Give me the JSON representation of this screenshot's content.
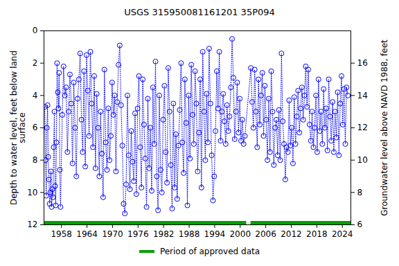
{
  "chart_data": {
    "type": "scatter",
    "title": "USGS 315950081161201 35P094",
    "y_label": "Depth to water level, feet below land\nsurface",
    "y2_label": "Groundwater level above NAVD 1988, feet",
    "marker": "circle",
    "line_style": "dotted",
    "color": "#0000ff",
    "xlim": [
      1953.9,
      2026
    ],
    "xticks": [
      1958,
      1964,
      1970,
      1976,
      1982,
      1988,
      1994,
      2000,
      2006,
      2012,
      2018,
      2024
    ],
    "ylim": [
      0,
      12
    ],
    "yticks": [
      0,
      2,
      4,
      6,
      8,
      10,
      12
    ],
    "y2lim": [
      18,
      6
    ],
    "y2ticks": [
      6,
      8,
      10,
      12,
      14,
      16
    ],
    "approved_periods": {
      "name": "Period of approved data",
      "color": "#00a000",
      "ranges": [
        [
          1953.9,
          2001.5
        ],
        [
          2002.5,
          2026
        ]
      ]
    },
    "x": [
      1954.1,
      1954.26,
      1954.42,
      1954.58,
      1954.74,
      1954.9,
      1955.06,
      1955.22,
      1955.38,
      1955.54,
      1955.7,
      1955.86,
      1956.02,
      1956.18,
      1956.34,
      1956.5,
      1956.66,
      1956.82,
      1956.98,
      1957.14,
      1957.3,
      1957.46,
      1957.62,
      1957.78,
      1958.2,
      1958.5,
      1958.8,
      1959.1,
      1959.4,
      1959.7,
      1960.0,
      1960.3,
      1960.6,
      1960.9,
      1961.2,
      1961.5,
      1961.8,
      1962.1,
      1962.4,
      1962.7,
      1963.0,
      1963.3,
      1963.6,
      1963.9,
      1964.2,
      1964.5,
      1964.8,
      1965.1,
      1965.4,
      1965.7,
      1966.0,
      1966.3,
      1966.6,
      1966.9,
      1967.2,
      1967.5,
      1967.8,
      1968.1,
      1968.4,
      1968.7,
      1969.0,
      1969.3,
      1969.6,
      1969.9,
      1970.2,
      1970.5,
      1970.8,
      1971.1,
      1971.4,
      1971.7,
      1972.0,
      1972.3,
      1972.6,
      1972.9,
      1973.2,
      1973.5,
      1973.8,
      1974.1,
      1974.4,
      1974.7,
      1975.0,
      1975.3,
      1975.6,
      1975.9,
      1976.2,
      1976.5,
      1976.8,
      1977.1,
      1977.4,
      1977.7,
      1978.0,
      1978.3,
      1978.6,
      1978.9,
      1979.2,
      1979.5,
      1979.8,
      1980.1,
      1980.4,
      1980.7,
      1981.0,
      1981.3,
      1981.6,
      1981.9,
      1982.2,
      1982.5,
      1982.8,
      1983.1,
      1983.4,
      1983.7,
      1984.0,
      1984.3,
      1984.6,
      1984.9,
      1985.2,
      1985.5,
      1985.8,
      1986.1,
      1986.4,
      1986.7,
      1987.0,
      1987.3,
      1987.6,
      1987.9,
      1988.2,
      1988.5,
      1988.8,
      1989.1,
      1989.4,
      1989.7,
      1990.0,
      1990.3,
      1990.6,
      1990.9,
      1991.2,
      1991.5,
      1991.8,
      1992.1,
      1992.4,
      1992.7,
      1993.0,
      1993.3,
      1993.6,
      1993.9,
      1994.2,
      1994.5,
      1994.8,
      1995.1,
      1995.4,
      1995.7,
      1996.0,
      1996.3,
      1996.6,
      1996.9,
      1997.2,
      1997.5,
      1997.8,
      1998.1,
      1998.4,
      1998.7,
      1999.0,
      1999.3,
      1999.6,
      1999.9,
      2000.2,
      2000.5,
      2000.8,
      2001.1,
      2002.5,
      2002.8,
      2003.1,
      2003.4,
      2003.7,
      2004.0,
      2004.3,
      2004.6,
      2004.9,
      2005.2,
      2005.5,
      2005.8,
      2006.1,
      2006.4,
      2006.7,
      2007.0,
      2007.3,
      2007.6,
      2007.9,
      2008.2,
      2008.5,
      2008.8,
      2009.1,
      2009.4,
      2009.7,
      2010.0,
      2010.3,
      2010.6,
      2010.9,
      2011.2,
      2011.5,
      2011.8,
      2012.1,
      2012.4,
      2012.7,
      2013.0,
      2013.3,
      2013.6,
      2013.9,
      2014.2,
      2014.5,
      2014.8,
      2015.1,
      2015.4,
      2015.7,
      2016.0,
      2016.3,
      2016.6,
      2016.9,
      2017.2,
      2017.5,
      2017.8,
      2018.1,
      2018.4,
      2018.7,
      2019.0,
      2019.3,
      2019.6,
      2019.9,
      2020.2,
      2020.5,
      2020.8,
      2021.1,
      2021.4,
      2021.7,
      2022.0,
      2022.3,
      2022.6,
      2022.9,
      2023.2,
      2023.5,
      2023.8,
      2024.1,
      2024.4,
      2024.7,
      2025.0,
      2025.3
    ],
    "values": [
      4.7,
      8.0,
      10.2,
      6.0,
      4.6,
      7.8,
      9.2,
      10.7,
      10.0,
      8.7,
      10.9,
      9.8,
      10.3,
      7.2,
      5.0,
      9.6,
      10.8,
      6.9,
      2.0,
      3.8,
      4.8,
      2.6,
      8.6,
      10.9,
      5.2,
      2.2,
      4.0,
      3.5,
      7.5,
      5.0,
      2.7,
      4.5,
      8.2,
      3.2,
      6.0,
      9.0,
      4.2,
      3.0,
      1.4,
      5.5,
      7.5,
      2.5,
      8.4,
      1.5,
      3.7,
      6.5,
      1.3,
      4.5,
      7.2,
      2.8,
      8.5,
      3.9,
      6.0,
      9.0,
      5.0,
      7.6,
      10.3,
      2.4,
      6.9,
      8.6,
      4.8,
      8.0,
      6.5,
      3.2,
      5.2,
      4.0,
      8.7,
      4.4,
      2.1,
      0.9,
      4.6,
      7.1,
      10.7,
      11.3,
      9.5,
      4.0,
      7.7,
      9.8,
      6.2,
      8.1,
      9.3,
      5.1,
      10.1,
      4.8,
      2.8,
      7.2,
      9.7,
      3.0,
      5.8,
      7.9,
      10.9,
      4.2,
      8.5,
      6.0,
      9.9,
      3.5,
      7.0,
      1.9,
      9.0,
      11.1,
      4.0,
      8.6,
      10.0,
      5.5,
      3.4,
      7.5,
      9.4,
      2.3,
      5.0,
      8.3,
      11.0,
      4.5,
      9.7,
      6.4,
      10.4,
      7.1,
      4.9,
      2.0,
      6.9,
      8.8,
      3.0,
      5.7,
      10.8,
      4.0,
      7.9,
      2.1,
      5.2,
      7.0,
      2.5,
      4.5,
      8.7,
      6.3,
      3.0,
      9.7,
      1.3,
      5.0,
      8.0,
      3.9,
      6.9,
      1.1,
      4.5,
      7.7,
      10.5,
      9.0,
      6.2,
      2.5,
      4.8,
      1.3,
      6.8,
      5.0,
      3.9,
      5.6,
      7.0,
      4.6,
      6.2,
      5.3,
      3.5,
      0.5,
      2.9,
      6.7,
      5.0,
      3.2,
      6.3,
      4.2,
      6.8,
      5.5,
      7.0,
      6.5,
      2.3,
      4.4,
      6.0,
      2.4,
      5.0,
      7.2,
      3.0,
      5.8,
      4.0,
      2.6,
      6.5,
      3.4,
      5.5,
      8.0,
      4.2,
      7.5,
      2.5,
      5.0,
      8.3,
      6.0,
      5.5,
      7.7,
      4.9,
      8.0,
      1.4,
      5.6,
      7.0,
      9.2,
      7.2,
      7.5,
      4.3,
      7.1,
      6.0,
      8.2,
      4.1,
      7.0,
      5.3,
      3.7,
      6.3,
      4.8,
      3.5,
      5.5,
      4.0,
      2.2,
      4.7,
      2.4,
      5.8,
      6.8,
      5.0,
      7.2,
      6.0,
      4.0,
      7.5,
      3.0,
      6.2,
      5.0,
      7.0,
      3.6,
      6.0,
      4.8,
      7.4,
      3.0,
      5.3,
      6.8,
      4.4,
      7.5,
      5.0,
      6.6,
      3.8,
      7.7,
      4.5,
      2.8,
      5.8,
      3.6,
      7.0,
      3.5,
      4.0
    ]
  }
}
